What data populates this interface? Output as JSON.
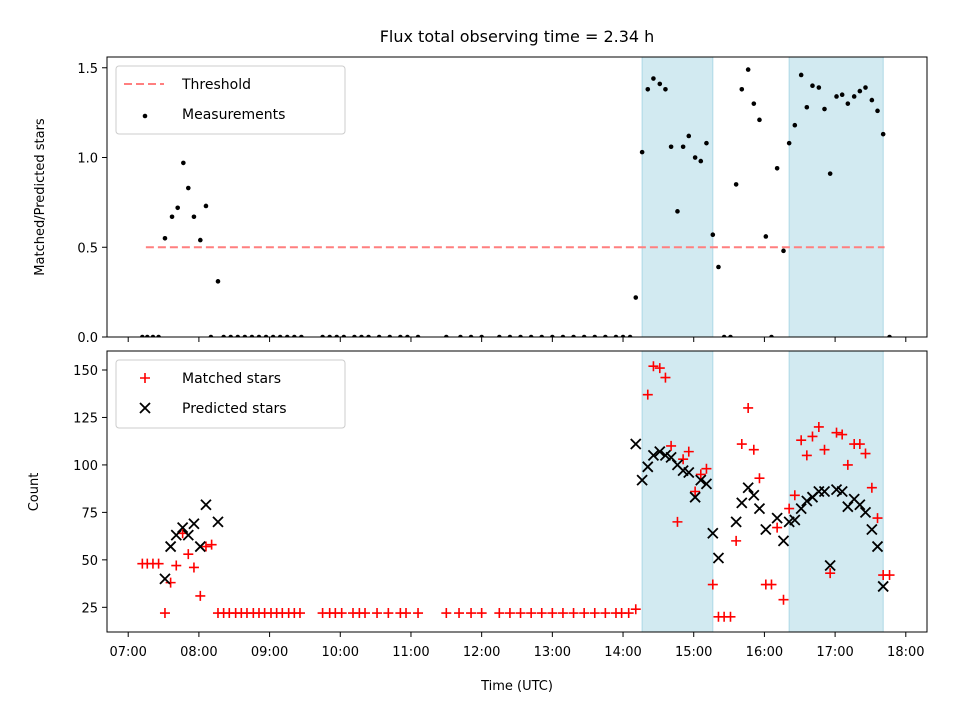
{
  "chart_data": [
    {
      "type": "scatter",
      "title": "Flux total observing time = 2.34 h",
      "xlabel": "",
      "ylabel": "Matched/Predicted stars",
      "xlim": [
        6.7,
        18.3
      ],
      "ylim": [
        0,
        1.56
      ],
      "yticks": [
        "0.0",
        "0.5",
        "1.0",
        "1.5"
      ],
      "legend_position": "top-left",
      "grid": false,
      "shaded_intervals_hours": [
        [
          14.27,
          15.27
        ],
        [
          16.35,
          17.68
        ]
      ],
      "shade_color": "#add8e6",
      "threshold": {
        "name": "Threshold",
        "y": 0.5,
        "x_range": [
          7.25,
          17.7
        ],
        "color": "#ff7f7f",
        "style": "dashed"
      },
      "series": [
        {
          "name": "Measurements",
          "color": "#000000",
          "marker": "dot",
          "points": [
            [
              7.2,
              0
            ],
            [
              7.27,
              0
            ],
            [
              7.35,
              0
            ],
            [
              7.43,
              0
            ],
            [
              7.52,
              0.55
            ],
            [
              7.62,
              0.67
            ],
            [
              7.7,
              0.72
            ],
            [
              7.78,
              0.97
            ],
            [
              7.85,
              0.83
            ],
            [
              7.93,
              0.67
            ],
            [
              8.02,
              0.54
            ],
            [
              8.1,
              0.73
            ],
            [
              8.17,
              0
            ],
            [
              8.27,
              0.31
            ],
            [
              8.35,
              0
            ],
            [
              8.45,
              0
            ],
            [
              8.55,
              0
            ],
            [
              8.65,
              0
            ],
            [
              8.75,
              0
            ],
            [
              8.85,
              0
            ],
            [
              8.95,
              0
            ],
            [
              9.05,
              0
            ],
            [
              9.15,
              0
            ],
            [
              9.25,
              0
            ],
            [
              9.35,
              0
            ],
            [
              9.45,
              0
            ],
            [
              9.75,
              0
            ],
            [
              9.85,
              0
            ],
            [
              9.95,
              0
            ],
            [
              10.05,
              0
            ],
            [
              10.2,
              0
            ],
            [
              10.3,
              0
            ],
            [
              10.4,
              0
            ],
            [
              10.55,
              0
            ],
            [
              10.7,
              0
            ],
            [
              10.85,
              0
            ],
            [
              10.95,
              0
            ],
            [
              11.1,
              0
            ],
            [
              11.5,
              0
            ],
            [
              11.7,
              0
            ],
            [
              11.85,
              0
            ],
            [
              12.0,
              0
            ],
            [
              12.25,
              0
            ],
            [
              12.4,
              0
            ],
            [
              12.55,
              0
            ],
            [
              12.7,
              0
            ],
            [
              12.85,
              0
            ],
            [
              13.0,
              0
            ],
            [
              13.15,
              0
            ],
            [
              13.3,
              0
            ],
            [
              13.45,
              0
            ],
            [
              13.6,
              0
            ],
            [
              13.75,
              0
            ],
            [
              13.9,
              0
            ],
            [
              14.0,
              0
            ],
            [
              14.1,
              0
            ],
            [
              14.18,
              0.22
            ],
            [
              14.27,
              1.03
            ],
            [
              14.35,
              1.38
            ],
            [
              14.43,
              1.44
            ],
            [
              14.52,
              1.41
            ],
            [
              14.6,
              1.38
            ],
            [
              14.68,
              1.06
            ],
            [
              14.77,
              0.7
            ],
            [
              14.85,
              1.06
            ],
            [
              14.93,
              1.12
            ],
            [
              15.02,
              1.0
            ],
            [
              15.1,
              0.98
            ],
            [
              15.18,
              1.08
            ],
            [
              15.27,
              0.57
            ],
            [
              15.35,
              0.39
            ],
            [
              15.43,
              0
            ],
            [
              15.52,
              0
            ],
            [
              15.6,
              0.85
            ],
            [
              15.68,
              1.38
            ],
            [
              15.77,
              1.49
            ],
            [
              15.85,
              1.3
            ],
            [
              15.93,
              1.21
            ],
            [
              16.02,
              0.56
            ],
            [
              16.1,
              0
            ],
            [
              16.18,
              0.94
            ],
            [
              16.27,
              0.48
            ],
            [
              16.35,
              1.08
            ],
            [
              16.43,
              1.18
            ],
            [
              16.52,
              1.46
            ],
            [
              16.6,
              1.28
            ],
            [
              16.68,
              1.4
            ],
            [
              16.77,
              1.39
            ],
            [
              16.85,
              1.27
            ],
            [
              16.93,
              0.91
            ],
            [
              17.02,
              1.34
            ],
            [
              17.1,
              1.35
            ],
            [
              17.18,
              1.3
            ],
            [
              17.27,
              1.34
            ],
            [
              17.35,
              1.37
            ],
            [
              17.43,
              1.39
            ],
            [
              17.52,
              1.32
            ],
            [
              17.6,
              1.26
            ],
            [
              17.68,
              1.13
            ],
            [
              17.77,
              0
            ]
          ]
        }
      ]
    },
    {
      "type": "scatter",
      "title": "",
      "xlabel": "Time (UTC)",
      "ylabel": "Count",
      "xlim": [
        6.7,
        18.3
      ],
      "ylim": [
        12,
        160
      ],
      "yticks": [
        "25",
        "50",
        "75",
        "100",
        "125",
        "150"
      ],
      "xticks": [
        "07:00",
        "08:00",
        "09:00",
        "10:00",
        "11:00",
        "12:00",
        "13:00",
        "14:00",
        "15:00",
        "16:00",
        "17:00",
        "18:00"
      ],
      "legend_position": "top-left",
      "grid": false,
      "shaded_intervals_hours": [
        [
          14.27,
          15.27
        ],
        [
          16.35,
          17.68
        ]
      ],
      "shade_color": "#add8e6",
      "series": [
        {
          "name": "Matched stars",
          "color": "#ff0000",
          "marker": "plus",
          "points": [
            [
              7.2,
              48
            ],
            [
              7.27,
              48
            ],
            [
              7.35,
              48
            ],
            [
              7.43,
              48
            ],
            [
              7.52,
              22
            ],
            [
              7.6,
              38
            ],
            [
              7.68,
              47
            ],
            [
              7.77,
              64
            ],
            [
              7.85,
              53
            ],
            [
              7.93,
              46
            ],
            [
              8.02,
              31
            ],
            [
              8.1,
              57
            ],
            [
              8.18,
              58
            ],
            [
              8.27,
              22
            ],
            [
              8.35,
              22
            ],
            [
              8.43,
              22
            ],
            [
              8.52,
              22
            ],
            [
              8.6,
              22
            ],
            [
              8.68,
              22
            ],
            [
              8.77,
              22
            ],
            [
              8.85,
              22
            ],
            [
              8.93,
              22
            ],
            [
              9.02,
              22
            ],
            [
              9.1,
              22
            ],
            [
              9.18,
              22
            ],
            [
              9.27,
              22
            ],
            [
              9.35,
              22
            ],
            [
              9.43,
              22
            ],
            [
              9.75,
              22
            ],
            [
              9.85,
              22
            ],
            [
              9.93,
              22
            ],
            [
              10.02,
              22
            ],
            [
              10.18,
              22
            ],
            [
              10.27,
              22
            ],
            [
              10.35,
              22
            ],
            [
              10.52,
              22
            ],
            [
              10.68,
              22
            ],
            [
              10.85,
              22
            ],
            [
              10.93,
              22
            ],
            [
              11.1,
              22
            ],
            [
              11.5,
              22
            ],
            [
              11.68,
              22
            ],
            [
              11.85,
              22
            ],
            [
              12.0,
              22
            ],
            [
              12.25,
              22
            ],
            [
              12.4,
              22
            ],
            [
              12.55,
              22
            ],
            [
              12.7,
              22
            ],
            [
              12.85,
              22
            ],
            [
              13.0,
              22
            ],
            [
              13.15,
              22
            ],
            [
              13.3,
              22
            ],
            [
              13.45,
              22
            ],
            [
              13.6,
              22
            ],
            [
              13.75,
              22
            ],
            [
              13.9,
              22
            ],
            [
              13.98,
              22
            ],
            [
              14.08,
              22
            ],
            [
              14.18,
              24
            ],
            [
              14.35,
              137
            ],
            [
              14.43,
              152
            ],
            [
              14.52,
              151
            ],
            [
              14.6,
              146
            ],
            [
              14.68,
              110
            ],
            [
              14.77,
              70
            ],
            [
              14.85,
              103
            ],
            [
              14.93,
              107
            ],
            [
              15.02,
              86
            ],
            [
              15.1,
              95
            ],
            [
              15.18,
              98
            ],
            [
              15.27,
              37
            ],
            [
              15.35,
              20
            ],
            [
              15.43,
              20
            ],
            [
              15.52,
              20
            ],
            [
              15.6,
              60
            ],
            [
              15.68,
              111
            ],
            [
              15.77,
              130
            ],
            [
              15.85,
              108
            ],
            [
              15.93,
              93
            ],
            [
              16.02,
              37
            ],
            [
              16.1,
              37
            ],
            [
              16.18,
              67
            ],
            [
              16.27,
              29
            ],
            [
              16.35,
              77
            ],
            [
              16.43,
              84
            ],
            [
              16.52,
              113
            ],
            [
              16.6,
              105
            ],
            [
              16.68,
              115
            ],
            [
              16.77,
              120
            ],
            [
              16.85,
              108
            ],
            [
              16.93,
              43
            ],
            [
              17.02,
              117
            ],
            [
              17.1,
              116
            ],
            [
              17.18,
              100
            ],
            [
              17.27,
              111
            ],
            [
              17.35,
              111
            ],
            [
              17.43,
              106
            ],
            [
              17.52,
              88
            ],
            [
              17.6,
              72
            ],
            [
              17.68,
              42
            ],
            [
              17.77,
              42
            ]
          ]
        },
        {
          "name": "Predicted stars",
          "color": "#000000",
          "marker": "x",
          "points": [
            [
              7.52,
              40
            ],
            [
              7.6,
              57
            ],
            [
              7.68,
              63
            ],
            [
              7.77,
              67
            ],
            [
              7.85,
              63
            ],
            [
              7.93,
              69
            ],
            [
              8.02,
              57
            ],
            [
              8.1,
              79
            ],
            [
              8.27,
              70
            ],
            [
              14.18,
              111
            ],
            [
              14.27,
              92
            ],
            [
              14.35,
              99
            ],
            [
              14.43,
              105
            ],
            [
              14.52,
              107
            ],
            [
              14.6,
              105
            ],
            [
              14.68,
              104
            ],
            [
              14.77,
              100
            ],
            [
              14.85,
              97
            ],
            [
              14.93,
              96
            ],
            [
              15.02,
              83
            ],
            [
              15.1,
              92
            ],
            [
              15.18,
              90
            ],
            [
              15.27,
              64
            ],
            [
              15.35,
              51
            ],
            [
              15.6,
              70
            ],
            [
              15.68,
              80
            ],
            [
              15.77,
              88
            ],
            [
              15.85,
              84
            ],
            [
              15.93,
              77
            ],
            [
              16.02,
              66
            ],
            [
              16.18,
              72
            ],
            [
              16.27,
              60
            ],
            [
              16.35,
              70
            ],
            [
              16.43,
              71
            ],
            [
              16.52,
              77
            ],
            [
              16.6,
              81
            ],
            [
              16.68,
              83
            ],
            [
              16.77,
              86
            ],
            [
              16.85,
              86
            ],
            [
              16.93,
              47
            ],
            [
              17.02,
              87
            ],
            [
              17.1,
              86
            ],
            [
              17.18,
              78
            ],
            [
              17.27,
              82
            ],
            [
              17.35,
              79
            ],
            [
              17.43,
              75
            ],
            [
              17.52,
              66
            ],
            [
              17.6,
              57
            ],
            [
              17.68,
              36
            ]
          ]
        }
      ]
    }
  ]
}
